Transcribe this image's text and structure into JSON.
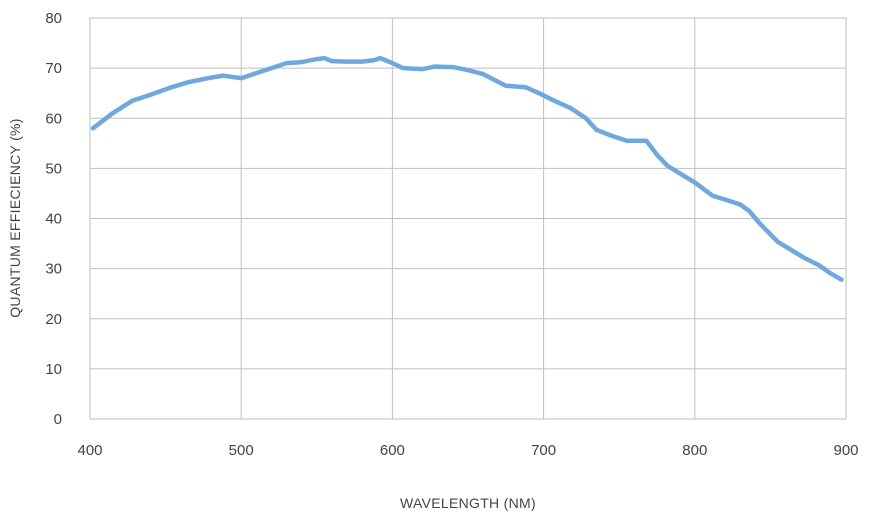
{
  "chart_data": {
    "type": "line",
    "title": "",
    "xlabel": "WAVELENGTH (NM)",
    "ylabel": "QUANTUM EFFIECIENCY (%)",
    "xlim": [
      400,
      900
    ],
    "ylim": [
      0,
      80
    ],
    "xticks": [
      400,
      500,
      600,
      700,
      800,
      900
    ],
    "yticks": [
      0,
      10,
      20,
      30,
      40,
      50,
      60,
      70,
      80
    ],
    "grid": true,
    "series": [
      {
        "color": "#6fa8dc",
        "points": [
          [
            402,
            58
          ],
          [
            415,
            61
          ],
          [
            428,
            63.5
          ],
          [
            440,
            64.7
          ],
          [
            452,
            66
          ],
          [
            465,
            67.2
          ],
          [
            478,
            68
          ],
          [
            488,
            68.5
          ],
          [
            500,
            68
          ],
          [
            515,
            69.5
          ],
          [
            530,
            71
          ],
          [
            540,
            71.2
          ],
          [
            550,
            71.8
          ],
          [
            555,
            72
          ],
          [
            560,
            71.4
          ],
          [
            570,
            71.3
          ],
          [
            580,
            71.3
          ],
          [
            588,
            71.6
          ],
          [
            592,
            72
          ],
          [
            600,
            71
          ],
          [
            607,
            70
          ],
          [
            620,
            69.8
          ],
          [
            628,
            70.3
          ],
          [
            640,
            70.2
          ],
          [
            650,
            69.6
          ],
          [
            660,
            68.8
          ],
          [
            675,
            66.5
          ],
          [
            688,
            66.2
          ],
          [
            697,
            65
          ],
          [
            707,
            63.5
          ],
          [
            718,
            62
          ],
          [
            728,
            60
          ],
          [
            735,
            57.7
          ],
          [
            745,
            56.5
          ],
          [
            755,
            55.5
          ],
          [
            768,
            55.5
          ],
          [
            775,
            52.7
          ],
          [
            782,
            50.5
          ],
          [
            790,
            49
          ],
          [
            800,
            47.2
          ],
          [
            812,
            44.5
          ],
          [
            820,
            43.8
          ],
          [
            830,
            42.8
          ],
          [
            836,
            41.5
          ],
          [
            843,
            39
          ],
          [
            855,
            35.3
          ],
          [
            865,
            33.5
          ],
          [
            872,
            32.2
          ],
          [
            882,
            30.7
          ],
          [
            890,
            29
          ],
          [
            897,
            27.8
          ]
        ]
      }
    ]
  }
}
